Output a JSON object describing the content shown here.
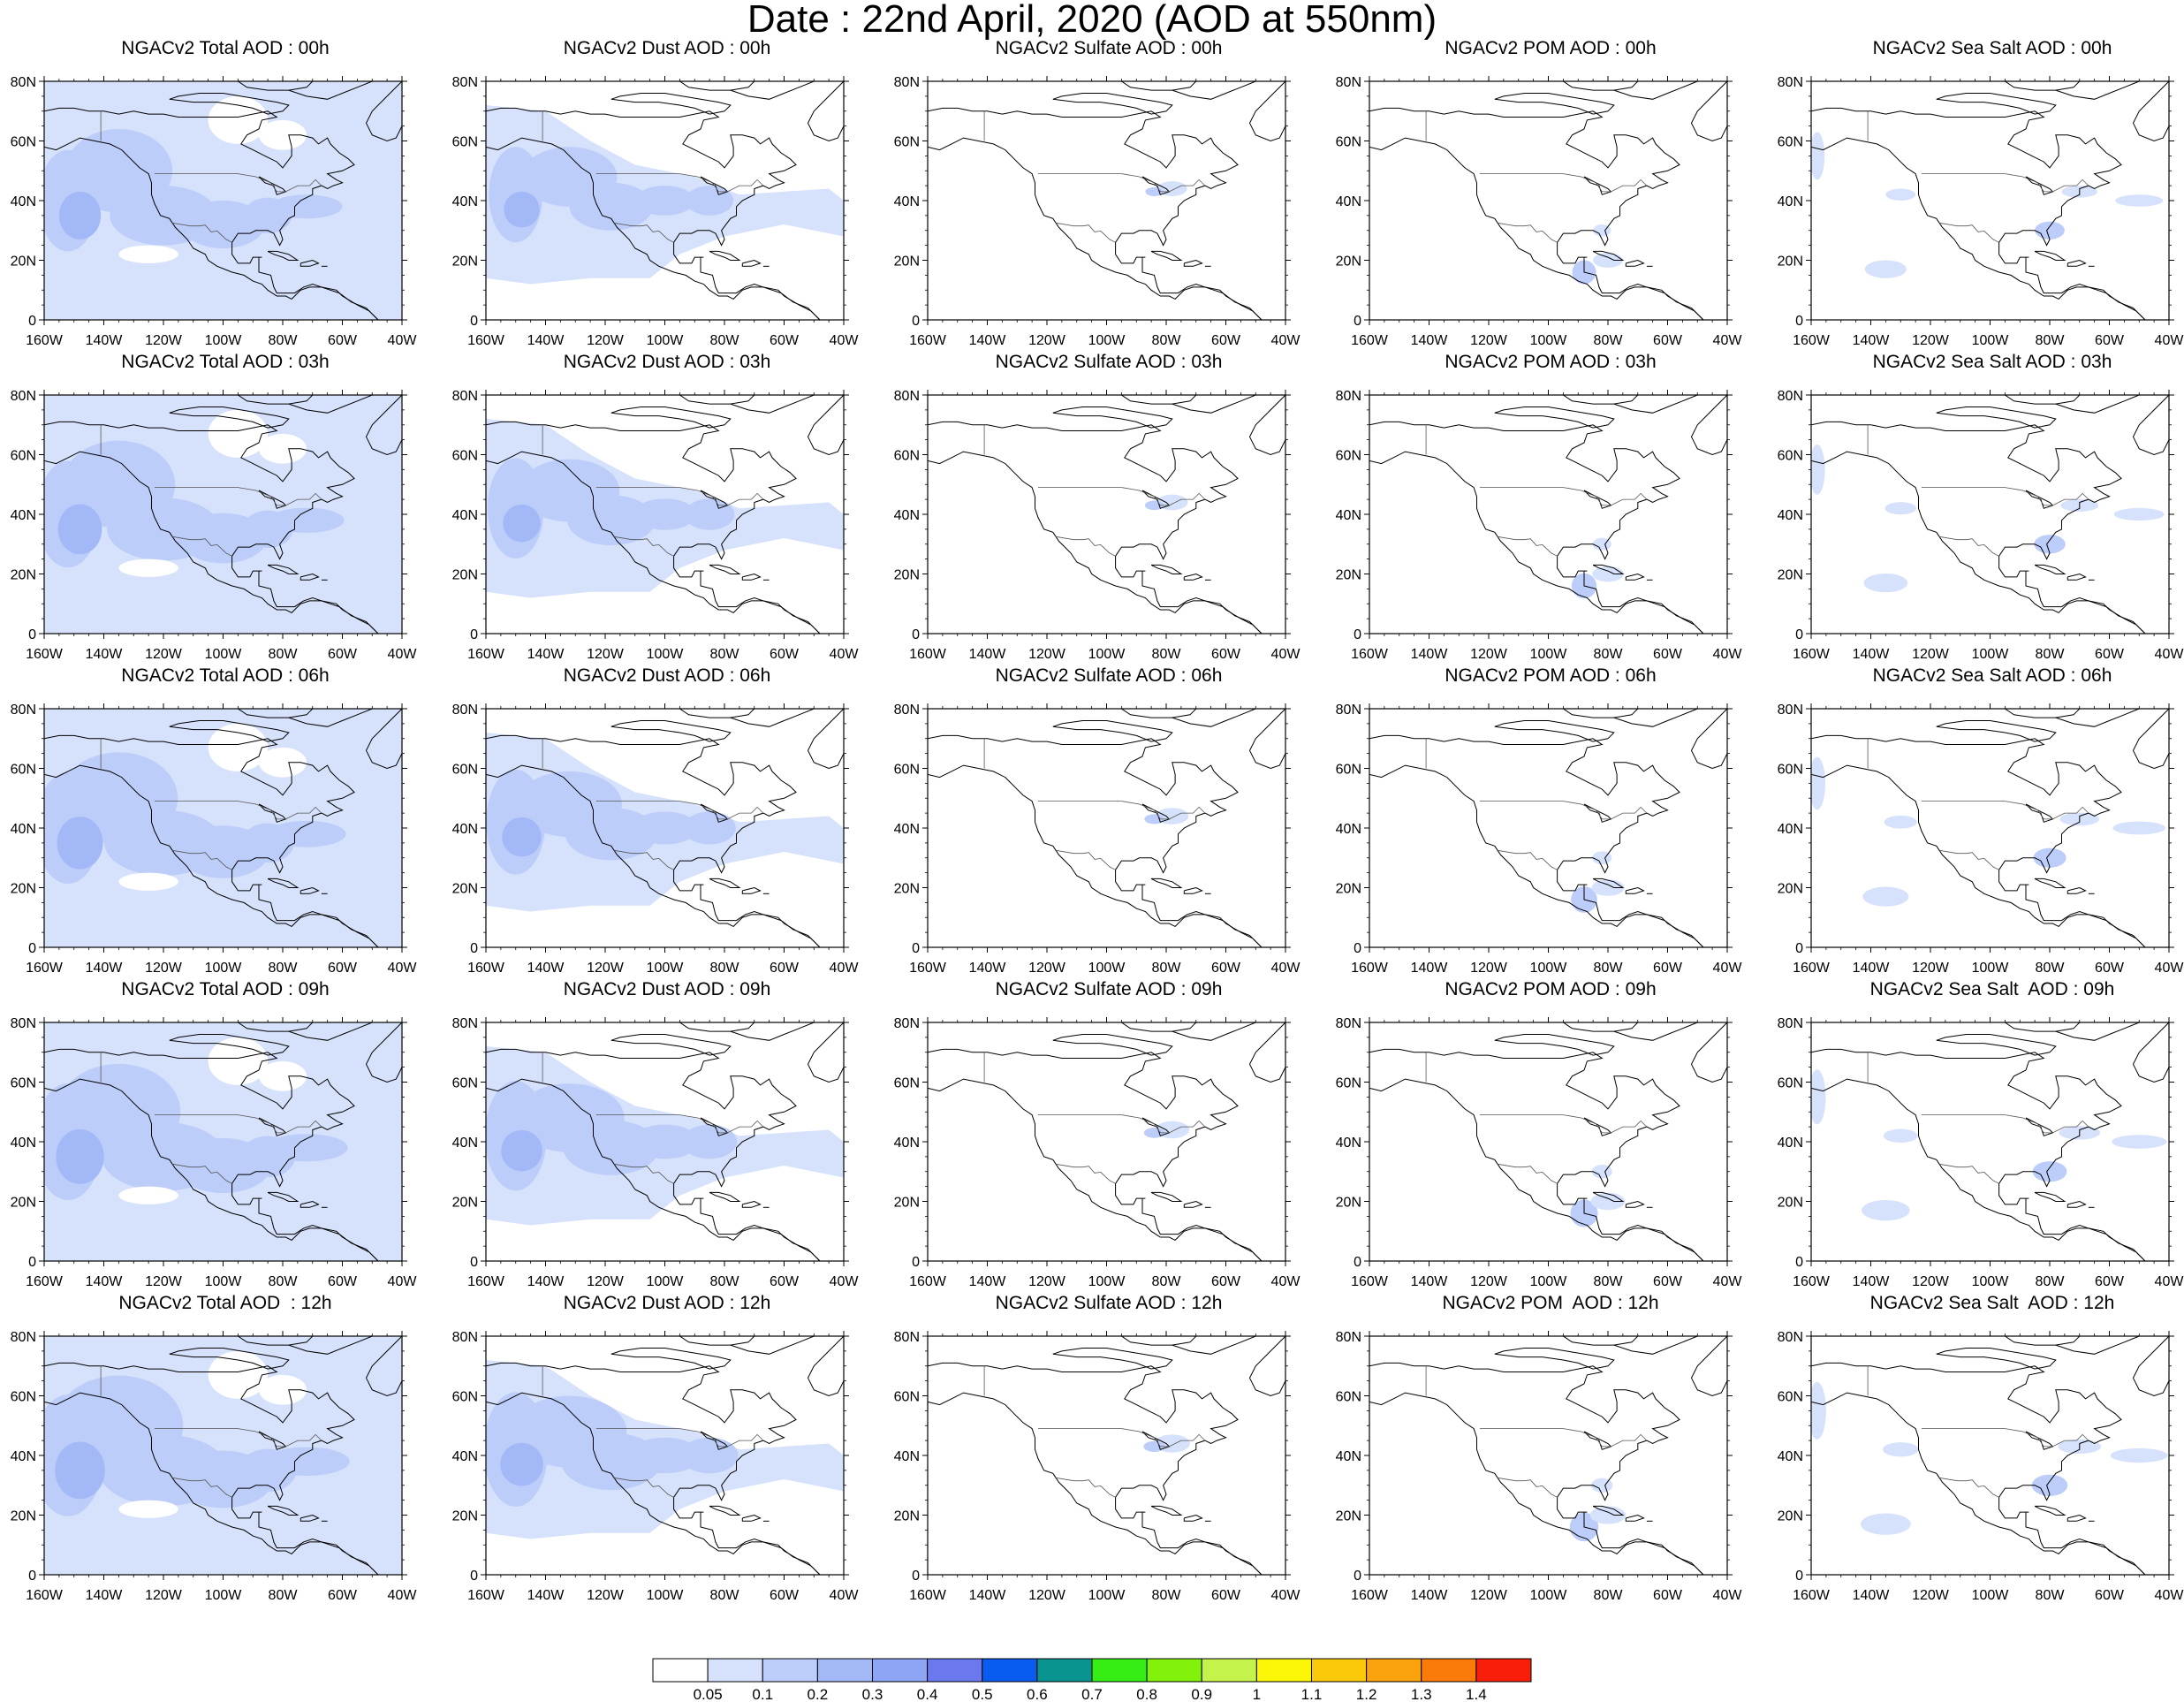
{
  "header": {
    "title": "Date : 22nd April, 2020 (AOD at 550nm)"
  },
  "map_axes": {
    "lat_labels": [
      "0",
      "20N",
      "40N",
      "60N",
      "80N"
    ],
    "lon_labels": [
      "160W",
      "140W",
      "120W",
      "100W",
      "80W",
      "60W",
      "40W"
    ]
  },
  "panels": [
    {
      "title": "NGACv2 Total AOD : 00h",
      "field": "total",
      "hour": 0
    },
    {
      "title": "NGACv2 Dust AOD : 00h",
      "field": "dust",
      "hour": 0
    },
    {
      "title": "NGACv2 Sulfate AOD : 00h",
      "field": "sulfate",
      "hour": 0
    },
    {
      "title": "NGACv2 POM AOD : 00h",
      "field": "pom",
      "hour": 0
    },
    {
      "title": "NGACv2 Sea Salt AOD : 00h",
      "field": "seasalt",
      "hour": 0
    },
    {
      "title": "NGACv2 Total AOD : 03h",
      "field": "total",
      "hour": 3
    },
    {
      "title": "NGACv2 Dust AOD : 03h",
      "field": "dust",
      "hour": 3
    },
    {
      "title": "NGACv2 Sulfate AOD : 03h",
      "field": "sulfate",
      "hour": 3
    },
    {
      "title": "NGACv2 POM AOD : 03h",
      "field": "pom",
      "hour": 3
    },
    {
      "title": "NGACv2 Sea Salt AOD : 03h",
      "field": "seasalt",
      "hour": 3
    },
    {
      "title": "NGACv2 Total AOD : 06h",
      "field": "total",
      "hour": 6
    },
    {
      "title": "NGACv2 Dust AOD : 06h",
      "field": "dust",
      "hour": 6
    },
    {
      "title": "NGACv2 Sulfate AOD : 06h",
      "field": "sulfate",
      "hour": 6
    },
    {
      "title": "NGACv2 POM AOD : 06h",
      "field": "pom",
      "hour": 6
    },
    {
      "title": "NGACv2 Sea Salt AOD : 06h",
      "field": "seasalt",
      "hour": 6
    },
    {
      "title": "NGACv2 Total AOD : 09h",
      "field": "total",
      "hour": 9
    },
    {
      "title": "NGACv2 Dust AOD : 09h",
      "field": "dust",
      "hour": 9
    },
    {
      "title": "NGACv2 Sulfate AOD : 09h",
      "field": "sulfate",
      "hour": 9
    },
    {
      "title": "NGACv2 POM AOD : 09h",
      "field": "pom",
      "hour": 9
    },
    {
      "title": "NGACv2 Sea Salt  AOD : 09h",
      "field": "seasalt",
      "hour": 9
    },
    {
      "title": "NGACv2 Total AOD  : 12h",
      "field": "total",
      "hour": 12
    },
    {
      "title": "NGACv2 Dust AOD : 12h",
      "field": "dust",
      "hour": 12
    },
    {
      "title": "NGACv2 Sulfate AOD : 12h",
      "field": "sulfate",
      "hour": 12
    },
    {
      "title": "NGACv2 POM  AOD : 12h",
      "field": "pom",
      "hour": 12
    },
    {
      "title": "NGACv2 Sea Salt  AOD : 12h",
      "field": "seasalt",
      "hour": 12
    }
  ],
  "colorbar": {
    "labels": [
      "0.05",
      "0.1",
      "0.2",
      "0.3",
      "0.4",
      "0.5",
      "0.6",
      "0.7",
      "0.8",
      "0.9",
      "1",
      "1.1",
      "1.2",
      "1.3",
      "1.4"
    ],
    "colors": [
      "#ffffff",
      "#d6e1fb",
      "#bccdf9",
      "#a3b9f7",
      "#8ea4f5",
      "#6b79ef",
      "#0a5cf0",
      "#0a9490",
      "#36ee14",
      "#82f20a",
      "#c6f24c",
      "#fbf608",
      "#fbc80a",
      "#fba30d",
      "#fa7a0a",
      "#f91e0a"
    ]
  }
}
